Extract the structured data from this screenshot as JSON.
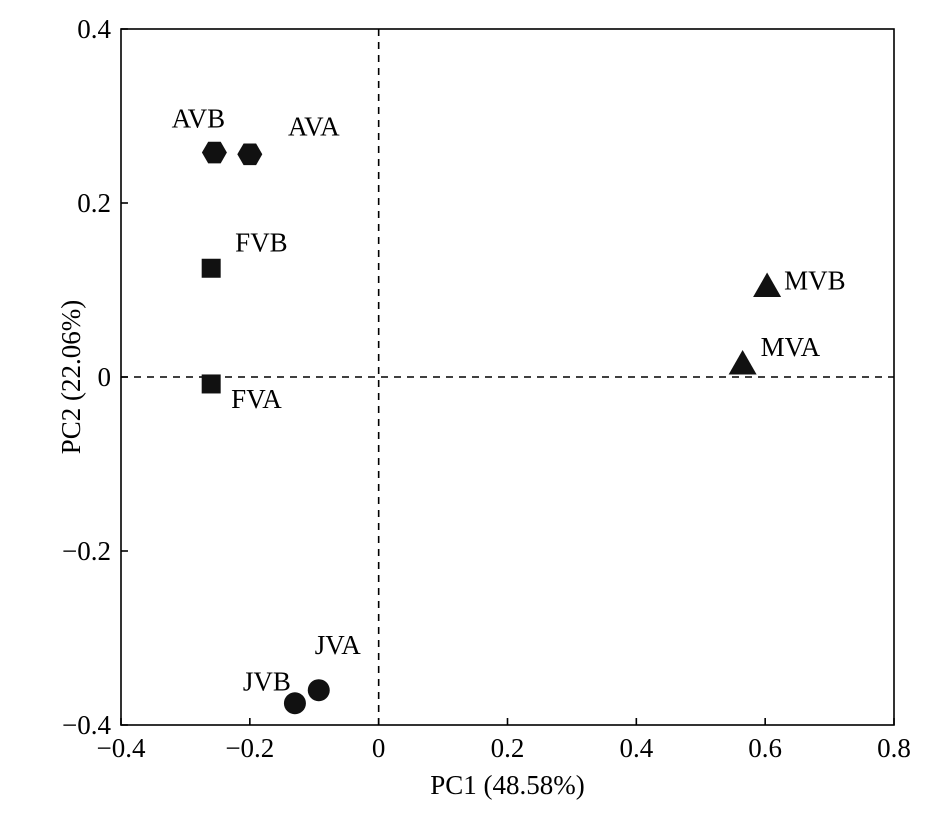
{
  "chart_data": {
    "type": "scatter",
    "title": "",
    "xlabel": "PC1 (48.58%)",
    "ylabel": "PC2 (22.06%)",
    "xlim": [
      -0.4,
      0.8
    ],
    "ylim": [
      -0.4,
      0.4
    ],
    "xticks": [
      -0.4,
      -0.2,
      0,
      0.2,
      0.4,
      0.6,
      0.8
    ],
    "yticks": [
      -0.4,
      -0.2,
      0,
      0.2,
      0.4
    ],
    "xtick_labels": [
      "−0.4",
      "−0.2",
      "0",
      "0.2",
      "0.4",
      "0.6",
      "0.8"
    ],
    "ytick_labels": [
      "−0.4",
      "−0.2",
      "0",
      "0.2",
      "0.4"
    ],
    "reference_lines": {
      "x": 0,
      "y": 0,
      "style": "dashed"
    },
    "grid": false,
    "legend": "none",
    "points": [
      {
        "label": "AVB",
        "x": -0.255,
        "y": 0.258,
        "marker": "hexagon"
      },
      {
        "label": "AVA",
        "x": -0.2,
        "y": 0.256,
        "marker": "hexagon"
      },
      {
        "label": "FVB",
        "x": -0.26,
        "y": 0.125,
        "marker": "square"
      },
      {
        "label": "FVA",
        "x": -0.26,
        "y": -0.008,
        "marker": "square"
      },
      {
        "label": "MVB",
        "x": 0.603,
        "y": 0.104,
        "marker": "triangle"
      },
      {
        "label": "MVA",
        "x": 0.565,
        "y": 0.015,
        "marker": "triangle"
      },
      {
        "label": "JVB",
        "x": -0.13,
        "y": -0.375,
        "marker": "circle"
      },
      {
        "label": "JVA",
        "x": -0.093,
        "y": -0.36,
        "marker": "circle"
      }
    ],
    "colors": {
      "marker": "#111111",
      "axis": "#000000"
    }
  }
}
